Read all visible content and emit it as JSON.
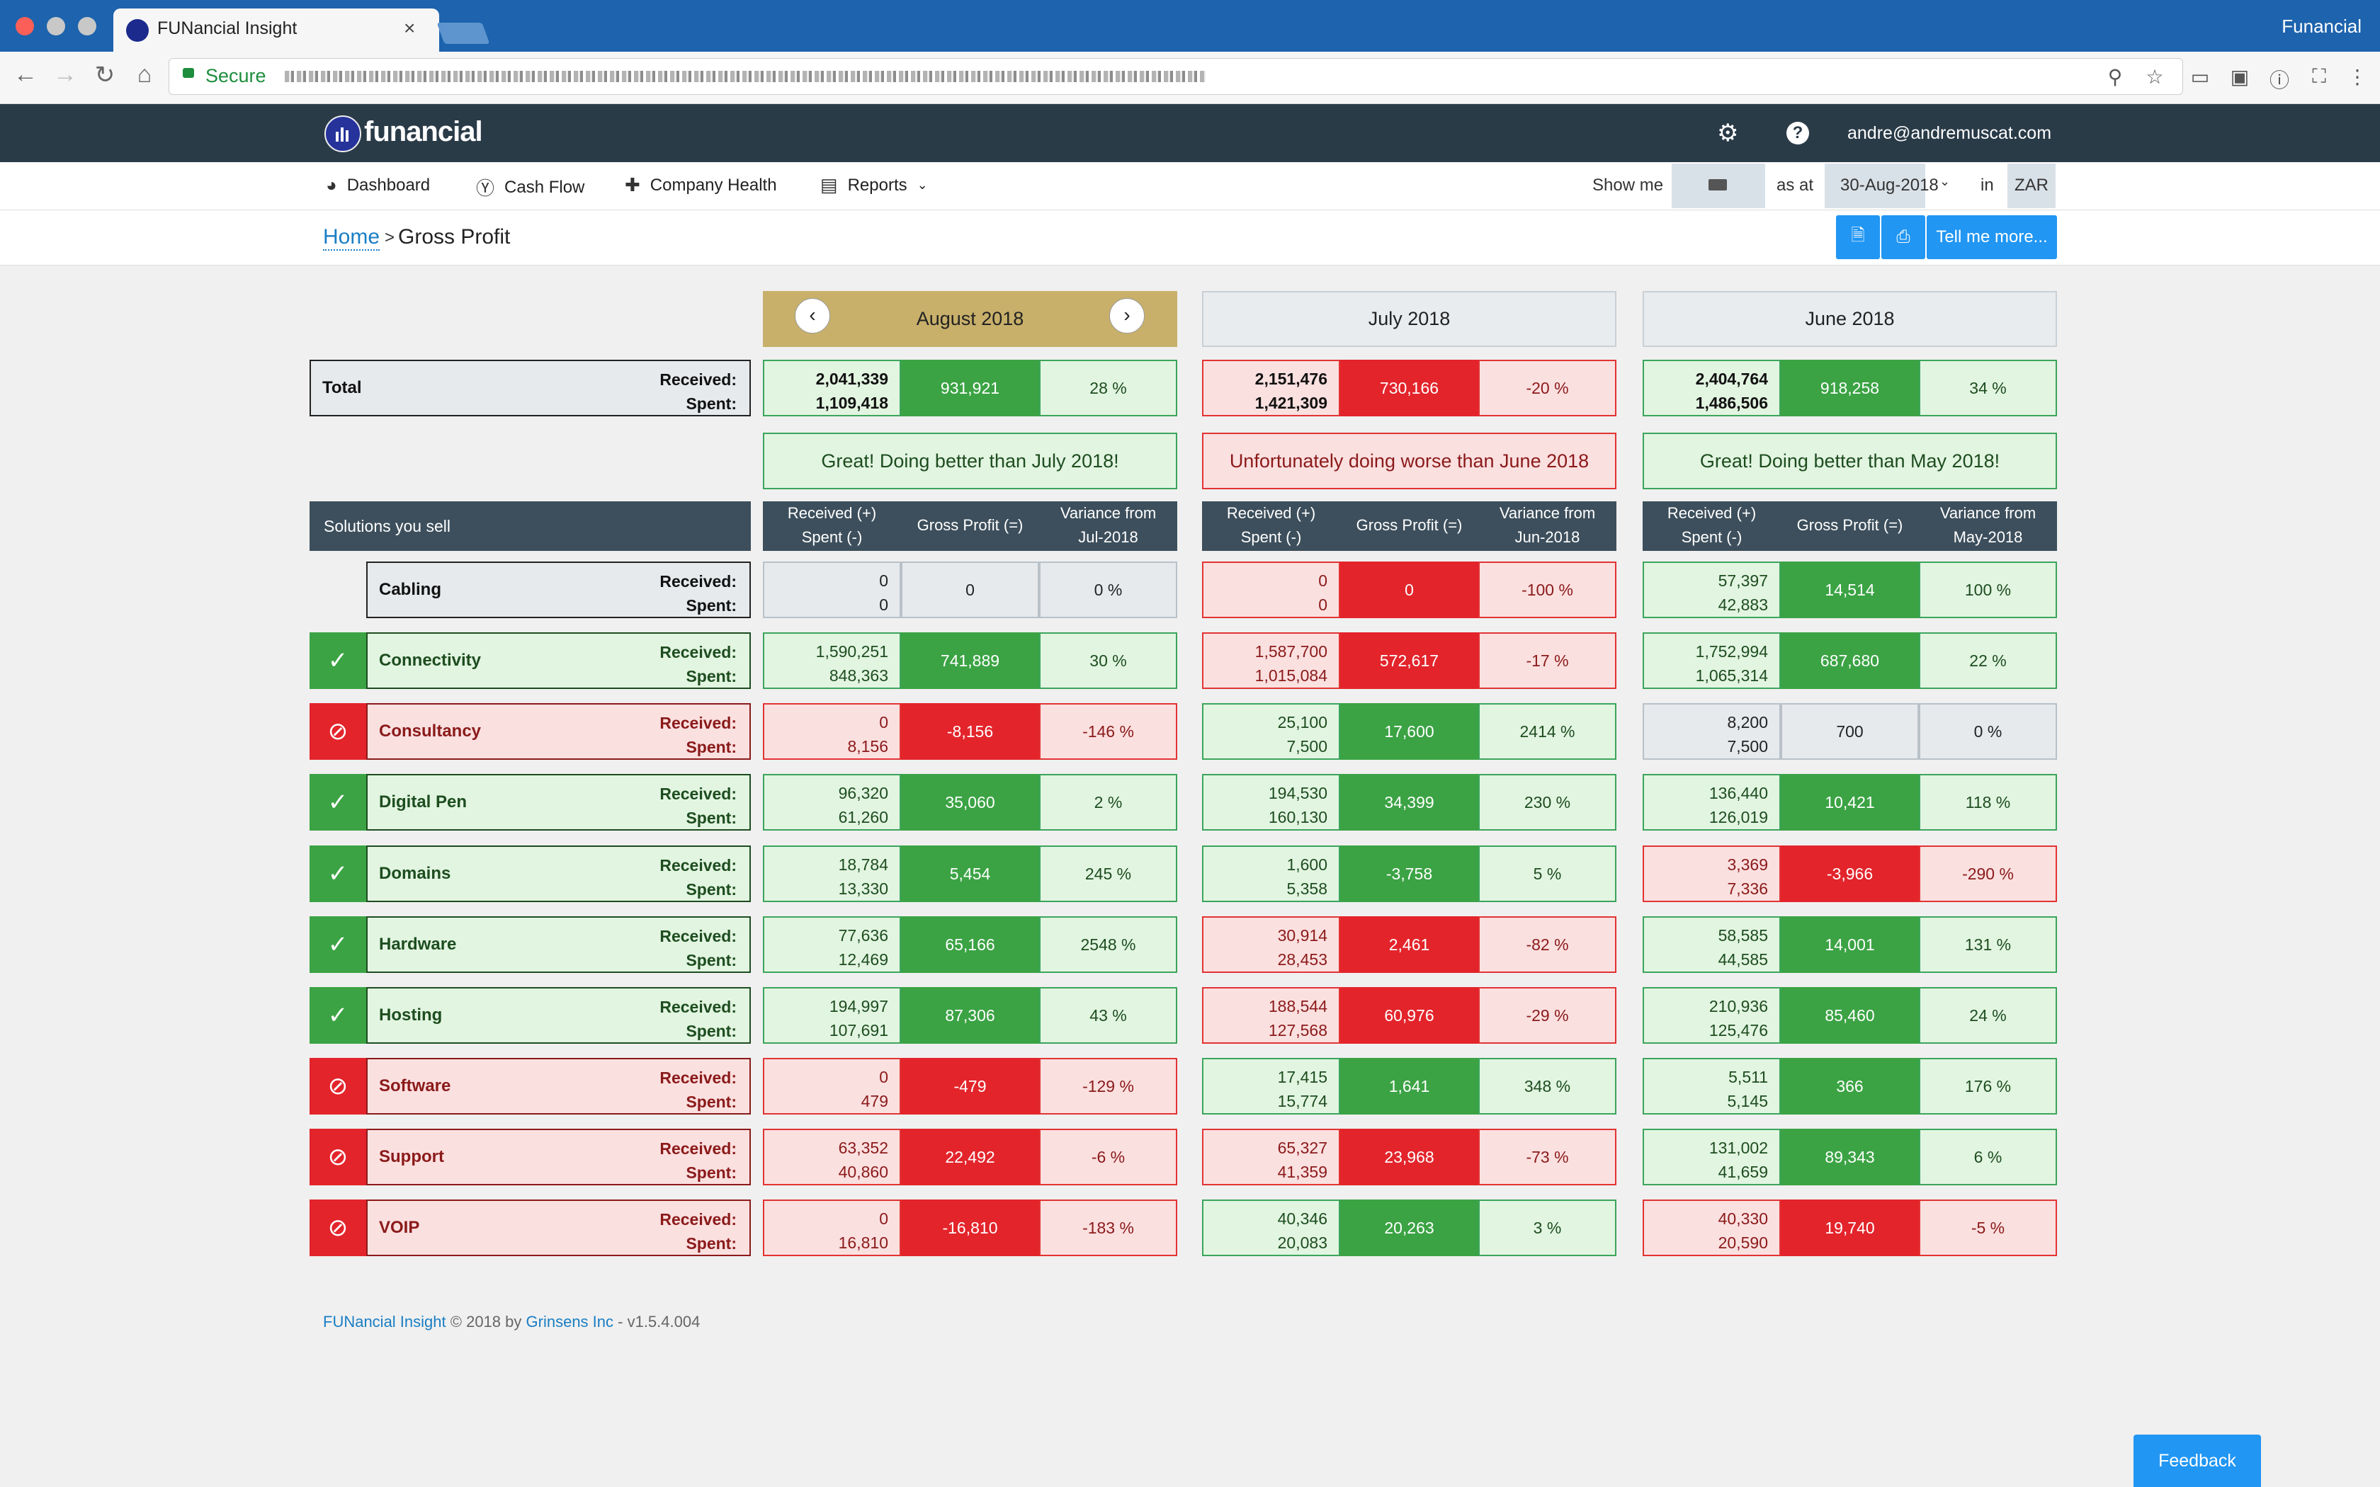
{
  "browser": {
    "tab_title": "FUNancial Insight",
    "tab_close": "×",
    "window_label": "Funancial",
    "secure_label": "Secure"
  },
  "app": {
    "logo_text": "funancial",
    "user_email": "andre@andremuscat.com"
  },
  "nav": {
    "items": [
      {
        "label": "Dashboard",
        "icon": "speedometer-icon"
      },
      {
        "label": "Cash Flow",
        "icon": "dollar-circle-icon"
      },
      {
        "label": "Company Health",
        "icon": "medkit-icon"
      },
      {
        "label": "Reports",
        "icon": "bar-chart-icon"
      }
    ],
    "show_me_label": "Show me",
    "as_at_label": "as at",
    "as_at_value": "30-Aug-2018",
    "in_label": "in",
    "currency": "ZAR"
  },
  "breadcrumb": {
    "home": "Home",
    "separator": ">",
    "page": "Gross Profit"
  },
  "actions": {
    "tell_me_more": "Tell me more..."
  },
  "months": [
    "August 2018",
    "July 2018",
    "June 2018"
  ],
  "total": {
    "label": "Total",
    "received_label": "Received:",
    "spent_label": "Spent:",
    "cols": [
      {
        "received": "2,041,339",
        "spent": "1,109,418",
        "profit": "931,921",
        "variance": "28 %",
        "status": "good"
      },
      {
        "received": "2,151,476",
        "spent": "1,421,309",
        "profit": "730,166",
        "variance": "-20 %",
        "status": "bad"
      },
      {
        "received": "2,404,764",
        "spent": "1,486,506",
        "profit": "918,258",
        "variance": "34 %",
        "status": "good"
      }
    ]
  },
  "messages": [
    {
      "text": "Great! Doing better than July 2018!",
      "status": "good"
    },
    {
      "text": "Unfortunately doing worse than June 2018",
      "status": "bad"
    },
    {
      "text": "Great! Doing better than May 2018!",
      "status": "good"
    }
  ],
  "section_label": "Solutions you sell",
  "column_headers": [
    {
      "rs": "Received (+)\nSpent (-)",
      "gp": "Gross Profit (=)",
      "var": "Variance from\nJul-2018"
    },
    {
      "rs": "Received (+)\nSpent (-)",
      "gp": "Gross Profit (=)",
      "var": "Variance from\nJun-2018"
    },
    {
      "rs": "Received (+)\nSpent (-)",
      "gp": "Gross Profit (=)",
      "var": "Variance from\nMay-2018"
    }
  ],
  "rows": [
    {
      "name": "Cabling",
      "status": "neutral",
      "cols": [
        {
          "received": "0",
          "spent": "0",
          "profit": "0",
          "variance": "0 %",
          "status": "neutral"
        },
        {
          "received": "0",
          "spent": "0",
          "profit": "0",
          "variance": "-100 %",
          "status": "bad"
        },
        {
          "received": "57,397",
          "spent": "42,883",
          "profit": "14,514",
          "variance": "100 %",
          "status": "good"
        }
      ]
    },
    {
      "name": "Connectivity",
      "status": "good",
      "cols": [
        {
          "received": "1,590,251",
          "spent": "848,363",
          "profit": "741,889",
          "variance": "30 %",
          "status": "good"
        },
        {
          "received": "1,587,700",
          "spent": "1,015,084",
          "profit": "572,617",
          "variance": "-17 %",
          "status": "bad"
        },
        {
          "received": "1,752,994",
          "spent": "1,065,314",
          "profit": "687,680",
          "variance": "22 %",
          "status": "good"
        }
      ]
    },
    {
      "name": "Consultancy",
      "status": "bad",
      "cols": [
        {
          "received": "0",
          "spent": "8,156",
          "profit": "-8,156",
          "variance": "-146 %",
          "status": "bad"
        },
        {
          "received": "25,100",
          "spent": "7,500",
          "profit": "17,600",
          "variance": "2414 %",
          "status": "good"
        },
        {
          "received": "8,200",
          "spent": "7,500",
          "profit": "700",
          "variance": "0 %",
          "status": "neutral"
        }
      ]
    },
    {
      "name": "Digital Pen",
      "status": "good",
      "cols": [
        {
          "received": "96,320",
          "spent": "61,260",
          "profit": "35,060",
          "variance": "2 %",
          "status": "good"
        },
        {
          "received": "194,530",
          "spent": "160,130",
          "profit": "34,399",
          "variance": "230 %",
          "status": "good"
        },
        {
          "received": "136,440",
          "spent": "126,019",
          "profit": "10,421",
          "variance": "118 %",
          "status": "good"
        }
      ]
    },
    {
      "name": "Domains",
      "status": "good",
      "cols": [
        {
          "received": "18,784",
          "spent": "13,330",
          "profit": "5,454",
          "variance": "245 %",
          "status": "good"
        },
        {
          "received": "1,600",
          "spent": "5,358",
          "profit": "-3,758",
          "variance": "5 %",
          "status": "good"
        },
        {
          "received": "3,369",
          "spent": "7,336",
          "profit": "-3,966",
          "variance": "-290 %",
          "status": "bad"
        }
      ]
    },
    {
      "name": "Hardware",
      "status": "good",
      "cols": [
        {
          "received": "77,636",
          "spent": "12,469",
          "profit": "65,166",
          "variance": "2548 %",
          "status": "good"
        },
        {
          "received": "30,914",
          "spent": "28,453",
          "profit": "2,461",
          "variance": "-82 %",
          "status": "bad"
        },
        {
          "received": "58,585",
          "spent": "44,585",
          "profit": "14,001",
          "variance": "131 %",
          "status": "good"
        }
      ]
    },
    {
      "name": "Hosting",
      "status": "good",
      "cols": [
        {
          "received": "194,997",
          "spent": "107,691",
          "profit": "87,306",
          "variance": "43 %",
          "status": "good"
        },
        {
          "received": "188,544",
          "spent": "127,568",
          "profit": "60,976",
          "variance": "-29 %",
          "status": "bad"
        },
        {
          "received": "210,936",
          "spent": "125,476",
          "profit": "85,460",
          "variance": "24 %",
          "status": "good"
        }
      ]
    },
    {
      "name": "Software",
      "status": "bad",
      "cols": [
        {
          "received": "0",
          "spent": "479",
          "profit": "-479",
          "variance": "-129 %",
          "status": "bad"
        },
        {
          "received": "17,415",
          "spent": "15,774",
          "profit": "1,641",
          "variance": "348 %",
          "status": "good"
        },
        {
          "received": "5,511",
          "spent": "5,145",
          "profit": "366",
          "variance": "176 %",
          "status": "good"
        }
      ]
    },
    {
      "name": "Support",
      "status": "bad",
      "cols": [
        {
          "received": "63,352",
          "spent": "40,860",
          "profit": "22,492",
          "variance": "-6 %",
          "status": "bad"
        },
        {
          "received": "65,327",
          "spent": "41,359",
          "profit": "23,968",
          "variance": "-73 %",
          "status": "bad"
        },
        {
          "received": "131,002",
          "spent": "41,659",
          "profit": "89,343",
          "variance": "6 %",
          "status": "good"
        }
      ]
    },
    {
      "name": "VOIP",
      "status": "bad",
      "cols": [
        {
          "received": "0",
          "spent": "16,810",
          "profit": "-16,810",
          "variance": "-183 %",
          "status": "bad"
        },
        {
          "received": "40,346",
          "spent": "20,083",
          "profit": "20,263",
          "variance": "3 %",
          "status": "good"
        },
        {
          "received": "40,330",
          "spent": "20,590",
          "profit": "19,740",
          "variance": "-5 %",
          "status": "bad"
        }
      ]
    }
  ],
  "footer": {
    "product": "FUNancial Insight",
    "copyright": "© 2018 by",
    "company": "Grinsens Inc",
    "version": "- v1.5.4.004"
  },
  "feedback_label": "Feedback",
  "colors": {
    "good_fill": "#3ba344",
    "bad_fill": "#e3242b",
    "good_bg": "#e2f5e1",
    "bad_bg": "#fbe0e0",
    "header_dark": "#2a3b48",
    "accent": "#2196f3",
    "current_month": "#c8b06b"
  }
}
